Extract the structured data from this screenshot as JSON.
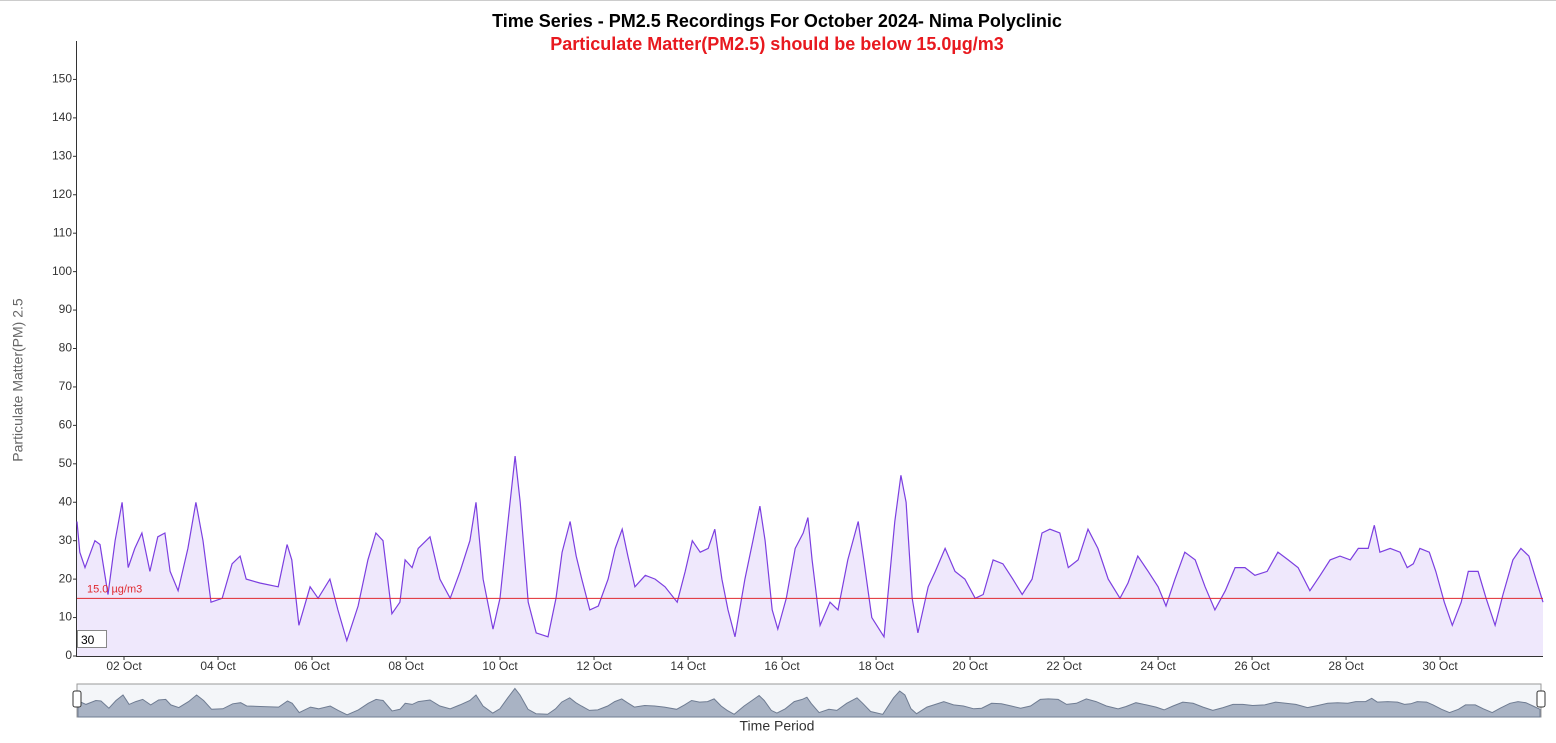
{
  "chart_data": {
    "type": "area",
    "title": "Time Series - PM2.5 Recordings For October 2024- Nima Polyclinic",
    "subtitle": "Particulate Matter(PM2.5) should be below 15.0µg/m3",
    "y_label": "Particulate Matter(PM) 2.5",
    "x_label": "Time Period",
    "threshold": {
      "value": 15,
      "label": "15.0 µg/m3",
      "color": "#e0292f"
    },
    "input_value": "30",
    "xlim": [
      1,
      32.19
    ],
    "ylim": [
      0,
      160
    ],
    "yticks": [
      0,
      10,
      20,
      30,
      40,
      50,
      60,
      70,
      80,
      90,
      100,
      110,
      120,
      130,
      140,
      150
    ],
    "xticks": [
      {
        "value": 2,
        "label": "02 Oct"
      },
      {
        "value": 4,
        "label": "04 Oct"
      },
      {
        "value": 6,
        "label": "06 Oct"
      },
      {
        "value": 8,
        "label": "08 Oct"
      },
      {
        "value": 10,
        "label": "10 Oct"
      },
      {
        "value": 12,
        "label": "12 Oct"
      },
      {
        "value": 14,
        "label": "14 Oct"
      },
      {
        "value": 16,
        "label": "16 Oct"
      },
      {
        "value": 18,
        "label": "18 Oct"
      },
      {
        "value": 20,
        "label": "20 Oct"
      },
      {
        "value": 22,
        "label": "22 Oct"
      },
      {
        "value": 24,
        "label": "24 Oct"
      },
      {
        "value": 26,
        "label": "26 Oct"
      },
      {
        "value": 28,
        "label": "28 Oct"
      },
      {
        "value": 30,
        "label": "30 Oct"
      }
    ],
    "series": [
      {
        "color": "#7c3fe0",
        "fill": "#efe8fc",
        "x": [
          1.0,
          1.06,
          1.17,
          1.38,
          1.49,
          1.66,
          1.81,
          1.96,
          2.09,
          2.23,
          2.38,
          2.55,
          2.72,
          2.87,
          2.98,
          3.15,
          3.36,
          3.53,
          3.68,
          3.85,
          4.09,
          4.3,
          4.47,
          4.6,
          4.89,
          5.28,
          5.47,
          5.57,
          5.72,
          5.96,
          6.13,
          6.38,
          6.55,
          6.74,
          6.98,
          7.19,
          7.36,
          7.51,
          7.7,
          7.87,
          7.98,
          8.13,
          8.26,
          8.51,
          8.72,
          8.94,
          9.15,
          9.36,
          9.49,
          9.64,
          9.85,
          10.0,
          10.17,
          10.32,
          10.43,
          10.6,
          10.77,
          11.02,
          11.19,
          11.32,
          11.49,
          11.62,
          11.74,
          11.91,
          12.09,
          12.3,
          12.45,
          12.6,
          12.72,
          12.87,
          13.09,
          13.3,
          13.51,
          13.77,
          13.94,
          14.09,
          14.26,
          14.43,
          14.57,
          14.72,
          14.85,
          15.0,
          15.21,
          15.38,
          15.53,
          15.64,
          15.79,
          15.91,
          16.09,
          16.28,
          16.45,
          16.55,
          16.64,
          16.81,
          17.02,
          17.19,
          17.4,
          17.62,
          17.74,
          17.91,
          18.17,
          18.4,
          18.53,
          18.64,
          18.77,
          18.89,
          19.11,
          19.26,
          19.47,
          19.68,
          19.89,
          20.11,
          20.28,
          20.49,
          20.7,
          20.91,
          21.11,
          21.32,
          21.53,
          21.7,
          21.91,
          22.09,
          22.3,
          22.51,
          22.72,
          22.94,
          23.19,
          23.36,
          23.57,
          23.79,
          24.0,
          24.17,
          24.36,
          24.57,
          24.79,
          25.0,
          25.21,
          25.43,
          25.64,
          25.85,
          26.06,
          26.32,
          26.55,
          26.77,
          26.98,
          27.23,
          27.45,
          27.66,
          27.87,
          28.09,
          28.26,
          28.47,
          28.6,
          28.72,
          28.94,
          29.15,
          29.3,
          29.43,
          29.57,
          29.77,
          29.91,
          30.09,
          30.26,
          30.45,
          30.6,
          30.81,
          30.98,
          31.17,
          31.34,
          31.55,
          31.72,
          31.89,
          32.04,
          32.19
        ],
        "values": [
          35,
          27,
          23,
          30,
          29,
          16,
          30,
          40,
          23,
          28,
          32,
          22,
          31,
          32,
          22,
          17,
          28,
          40,
          30,
          14,
          15,
          24,
          26,
          20,
          19,
          18,
          29,
          25,
          8,
          18,
          15,
          20,
          12,
          4,
          13,
          25,
          32,
          30,
          11,
          14,
          25,
          23,
          28,
          31,
          20,
          15,
          22,
          30,
          40,
          20,
          7,
          15,
          35,
          52,
          40,
          14,
          6,
          5,
          15,
          27,
          35,
          26,
          20,
          12,
          13,
          20,
          28,
          33,
          26,
          18,
          21,
          20,
          18,
          14,
          22,
          30,
          27,
          28,
          33,
          20,
          12,
          5,
          20,
          30,
          39,
          30,
          12,
          7,
          15,
          28,
          32,
          36,
          25,
          8,
          14,
          12,
          25,
          35,
          25,
          10,
          5,
          35,
          47,
          40,
          15,
          6,
          18,
          22,
          28,
          22,
          20,
          15,
          16,
          25,
          24,
          20,
          16,
          20,
          32,
          33,
          32,
          23,
          25,
          33,
          28,
          20,
          15,
          19,
          26,
          22,
          18,
          13,
          20,
          27,
          25,
          18,
          12,
          17,
          23,
          23,
          21,
          22,
          27,
          25,
          23,
          17,
          21,
          25,
          26,
          25,
          28,
          28,
          34,
          27,
          28,
          27,
          23,
          24,
          28,
          27,
          22,
          14,
          8,
          14,
          22,
          22,
          15,
          8,
          16,
          25,
          28,
          26,
          20,
          14
        ]
      }
    ]
  }
}
